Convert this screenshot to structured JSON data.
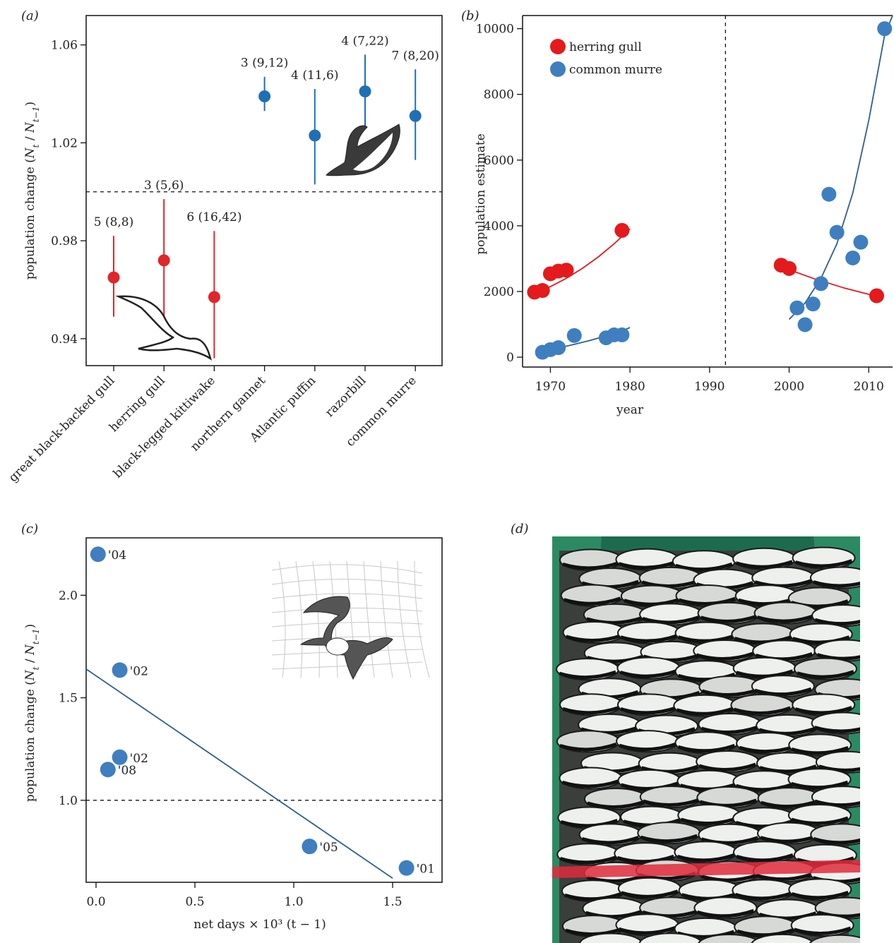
{
  "chart_data": [
    {
      "panel": "(a)",
      "type": "scatter",
      "ylabel": "population change (N_t / N_t−1)",
      "ylim": [
        0.929,
        1.072
      ],
      "yticks": [
        0.94,
        0.98,
        1.02,
        1.06
      ],
      "reference_line_y": 1.0,
      "categories": [
        "great black-backed gull",
        "herring gull",
        "black-legged kittiwake",
        "northern gannet",
        "Atlantic puffin",
        "razorbill",
        "common murre"
      ],
      "points": [
        {
          "category": "great black-backed gull",
          "y": 0.965,
          "lo": 0.949,
          "hi": 0.982,
          "label": "5 (8,8)",
          "color": "#e0262a"
        },
        {
          "category": "herring gull",
          "y": 0.972,
          "lo": 0.948,
          "hi": 0.997,
          "label": "3 (5,6)",
          "color": "#e0262a"
        },
        {
          "category": "black-legged kittiwake",
          "y": 0.957,
          "lo": 0.932,
          "hi": 0.984,
          "label": "6 (16,42)",
          "color": "#e0262a"
        },
        {
          "category": "northern gannet",
          "y": 1.039,
          "lo": 1.033,
          "hi": 1.047,
          "label": "3 (9,12)",
          "color": "#1f6fb5"
        },
        {
          "category": "Atlantic puffin",
          "y": 1.023,
          "lo": 1.003,
          "hi": 1.042,
          "label": "4 (11,6)",
          "color": "#1f6fb5"
        },
        {
          "category": "razorbill",
          "y": 1.041,
          "lo": 1.026,
          "hi": 1.056,
          "label": "4 (7,22)",
          "color": "#1f6fb5"
        },
        {
          "category": "common murre",
          "y": 1.031,
          "lo": 1.013,
          "hi": 1.05,
          "label": "7 (8,20)",
          "color": "#1f6fb5"
        }
      ]
    },
    {
      "panel": "(b)",
      "type": "scatter",
      "xlabel": "year",
      "ylabel": "population estimate",
      "xlim": [
        1966.5,
        2013
      ],
      "ylim": [
        -300,
        10400
      ],
      "xticks": [
        1970,
        1980,
        1990,
        2000,
        2010
      ],
      "yticks": [
        0,
        2000,
        4000,
        6000,
        8000,
        10000
      ],
      "reference_line_x": 1992,
      "legend_position": "top-left",
      "series": [
        {
          "name": "herring gull",
          "color": "#e41a1c",
          "x": [
            1968,
            1969,
            1970,
            1971,
            1972,
            1979,
            1999,
            2000,
            2011
          ],
          "y": [
            1980,
            2030,
            2540,
            2620,
            2650,
            3860,
            2800,
            2700,
            1870
          ],
          "fits": [
            {
              "x": [
                1968,
                1970,
                1972,
                1974,
                1976,
                1978,
                1980
              ],
              "y": [
                1950,
                2150,
                2400,
                2700,
                3050,
                3450,
                3900
              ]
            },
            {
              "x": [
                1999,
                2003,
                2007,
                2011
              ],
              "y": [
                2750,
                2400,
                2100,
                1850
              ]
            }
          ]
        },
        {
          "name": "common murre",
          "color": "#3f7fbf",
          "x": [
            1969,
            1970,
            1971,
            1973,
            1977,
            1978,
            1979,
            2001,
            2002,
            2003,
            2004,
            2005,
            2006,
            2008,
            2009,
            2012
          ],
          "y": [
            150,
            230,
            290,
            660,
            590,
            680,
            680,
            1500,
            990,
            1620,
            2240,
            4960,
            3800,
            3020,
            3500,
            10000
          ],
          "fits": [
            {
              "x": [
                1969,
                1971,
                1973,
                1975,
                1977,
                1979,
                1980
              ],
              "y": [
                180,
                280,
                390,
                510,
                650,
                800,
                900
              ]
            },
            {
              "x": [
                2000,
                2002,
                2004,
                2006,
                2008,
                2010,
                2012,
                2013
              ],
              "y": [
                1150,
                1650,
                2400,
                3450,
                5000,
                7200,
                9800,
                10400
              ]
            }
          ]
        }
      ]
    },
    {
      "panel": "(c)",
      "type": "scatter",
      "xlabel": "net days × 10³ (t − 1)",
      "ylabel": "population change (N_t / N_t−1)",
      "xlim": [
        -0.05,
        1.75
      ],
      "ylim": [
        0.6,
        2.28
      ],
      "xticks": [
        0.0,
        0.5,
        1.0,
        1.5
      ],
      "yticks": [
        1.0,
        1.5,
        2.0
      ],
      "reference_line_y": 1.0,
      "series": [
        {
          "color": "#3f7fbf",
          "x": [
            0.01,
            0.12,
            0.12,
            0.06,
            1.08,
            1.57
          ],
          "y": [
            2.2,
            1.635,
            1.21,
            1.15,
            0.775,
            0.67
          ],
          "labels": [
            "'04",
            "'02",
            "'02",
            "'08",
            "'05",
            "'01"
          ],
          "fit": {
            "x": [
              -0.05,
              1.5
            ],
            "y": [
              1.64,
              0.62
            ]
          }
        }
      ]
    }
  ],
  "panel_d": {
    "label": "(d)",
    "photo": "box of seabird carcasses"
  }
}
